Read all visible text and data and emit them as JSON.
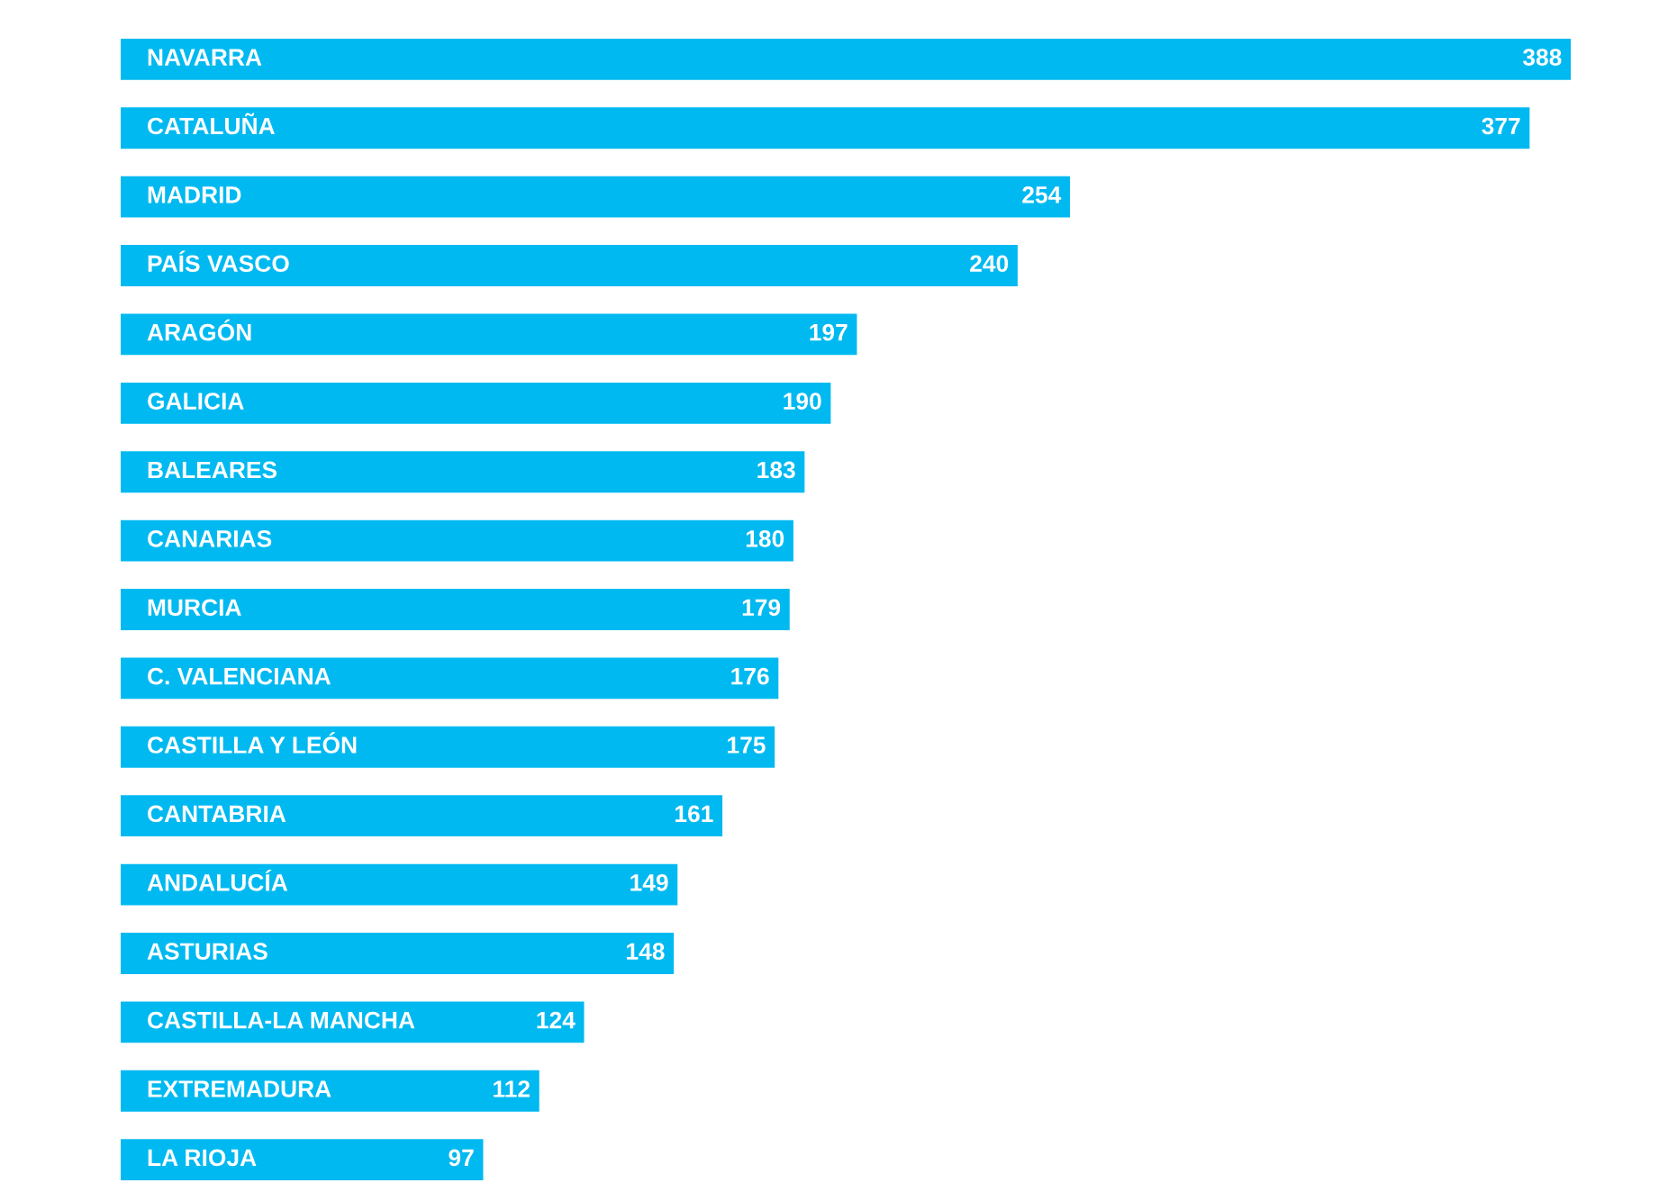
{
  "chart_data": {
    "type": "bar",
    "orientation": "horizontal",
    "categories": [
      "NAVARRA",
      "CATALUÑA",
      "MADRID",
      "PAÍS VASCO",
      "ARAGÓN",
      "GALICIA",
      "BALEARES",
      "CANARIAS",
      "MURCIA",
      "C. VALENCIANA",
      "CASTILLA Y LEÓN",
      "CANTABRIA",
      "ANDALUCÍA",
      "ASTURIAS",
      "CASTILLA-LA MANCHA",
      "EXTREMADURA",
      "LA RIOJA"
    ],
    "values": [
      388,
      377,
      254,
      240,
      197,
      190,
      183,
      180,
      179,
      176,
      175,
      161,
      149,
      148,
      124,
      112,
      97
    ],
    "color": "#00b9f1",
    "data_labels": true,
    "tick_labels": false
  }
}
